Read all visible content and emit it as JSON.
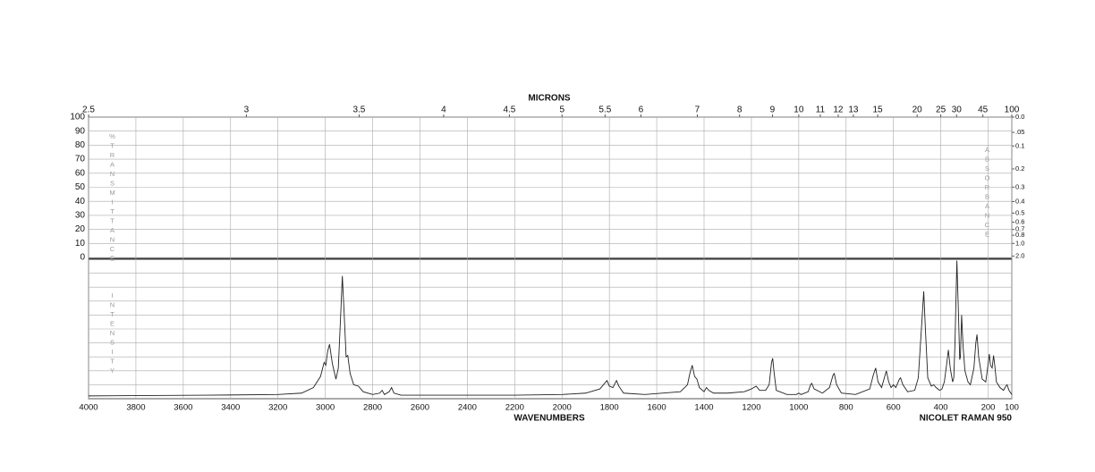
{
  "chart_data": {
    "type": "line",
    "top_axis_title": "MICRONS",
    "x_axis_title": "WAVENUMBERS",
    "instrument": "NICOLET RAMAN 950",
    "transmittance_label": "%TRANSMITTANCE",
    "intensity_label": "INTENSITY",
    "absorbance_label": "ABSORBANCE",
    "color": "#222222",
    "grid": true,
    "xlim": [
      4000,
      100
    ],
    "xticks": [
      4000,
      3800,
      3600,
      3400,
      3200,
      3000,
      2800,
      2600,
      2400,
      2200,
      2000,
      1800,
      1600,
      1400,
      1200,
      1000,
      800,
      600,
      400,
      200,
      100
    ],
    "x2ticks": [
      2.5,
      3,
      3.5,
      4,
      4.5,
      5,
      5.5,
      6,
      7,
      8,
      9,
      10,
      11,
      12,
      13,
      15,
      20,
      25,
      30,
      45,
      100
    ],
    "transmittance_lim": [
      0,
      100
    ],
    "transmittance_ticks": [
      0,
      10,
      20,
      30,
      40,
      50,
      60,
      70,
      80,
      90,
      100
    ],
    "absorbance_ticks": [
      {
        "value": 0,
        "label": "0.0"
      },
      {
        "value": 0.05,
        "label": ".05"
      },
      {
        "value": 0.1,
        "label": "0.1"
      },
      {
        "value": 0.2,
        "label": "0.2"
      },
      {
        "value": 0.3,
        "label": "0.3"
      },
      {
        "value": 0.4,
        "label": "0.4"
      },
      {
        "value": 0.5,
        "label": "0.5"
      },
      {
        "value": 0.6,
        "label": "0.6"
      },
      {
        "value": 0.7,
        "label": "0.7"
      },
      {
        "value": 0.8,
        "label": "0.8"
      },
      {
        "value": 1,
        "label": "1.0"
      },
      {
        "value": 2,
        "label": "2.0"
      }
    ],
    "ylim": [
      0,
      100
    ],
    "x": [
      4000,
      3500,
      3200,
      3100,
      3050,
      3020,
      3005,
      2998,
      2990,
      2982,
      2970,
      2955,
      2945,
      2935,
      2928,
      2920,
      2912,
      2905,
      2895,
      2880,
      2860,
      2840,
      2800,
      2770,
      2760,
      2750,
      2730,
      2720,
      2710,
      2680,
      2400,
      2200,
      2000,
      1900,
      1840,
      1820,
      1810,
      1800,
      1785,
      1770,
      1760,
      1740,
      1650,
      1500,
      1470,
      1460,
      1450,
      1440,
      1430,
      1420,
      1400,
      1390,
      1380,
      1360,
      1300,
      1230,
      1200,
      1180,
      1165,
      1140,
      1125,
      1115,
      1110,
      1105,
      1095,
      1050,
      1010,
      1000,
      990,
      960,
      950,
      945,
      935,
      900,
      870,
      855,
      850,
      840,
      820,
      760,
      700,
      685,
      675,
      665,
      650,
      640,
      630,
      620,
      610,
      600,
      590,
      575,
      570,
      560,
      540,
      510,
      495,
      480,
      472,
      465,
      455,
      440,
      430,
      420,
      405,
      395,
      385,
      375,
      368,
      360,
      350,
      345,
      340,
      332,
      326,
      320,
      317,
      312,
      306,
      298,
      285,
      275,
      260,
      252,
      247,
      240,
      225,
      210,
      200,
      195,
      190,
      183,
      177,
      172,
      165,
      150,
      135,
      125,
      120,
      112,
      100
    ],
    "values": [
      2,
      2.5,
      3,
      4,
      8,
      16,
      26,
      24,
      34,
      39,
      25,
      14,
      22,
      60,
      88,
      60,
      30,
      31,
      18,
      10,
      9,
      5,
      3,
      4,
      6,
      3,
      5,
      8,
      4,
      2.5,
      2.5,
      2.5,
      3,
      4,
      7,
      11,
      13,
      9,
      8,
      13,
      9,
      4,
      3,
      5,
      10,
      18,
      24,
      16,
      14,
      8,
      5,
      8,
      6,
      4,
      4,
      5,
      7,
      9,
      6,
      6,
      10,
      26,
      29,
      20,
      6,
      3,
      3,
      4,
      3,
      5,
      10,
      11,
      7,
      4,
      8,
      17,
      18,
      10,
      4,
      3,
      7,
      17,
      22,
      12,
      8,
      14,
      20,
      12,
      8,
      10,
      8,
      14,
      15,
      10,
      5,
      6,
      15,
      55,
      77,
      50,
      15,
      9,
      10,
      8,
      6,
      7,
      12,
      25,
      35,
      22,
      12,
      15,
      40,
      99,
      65,
      28,
      30,
      60,
      38,
      20,
      12,
      10,
      22,
      40,
      46,
      30,
      14,
      12,
      25,
      32,
      24,
      22,
      31,
      24,
      12,
      8,
      6,
      9,
      10,
      6,
      3
    ]
  }
}
